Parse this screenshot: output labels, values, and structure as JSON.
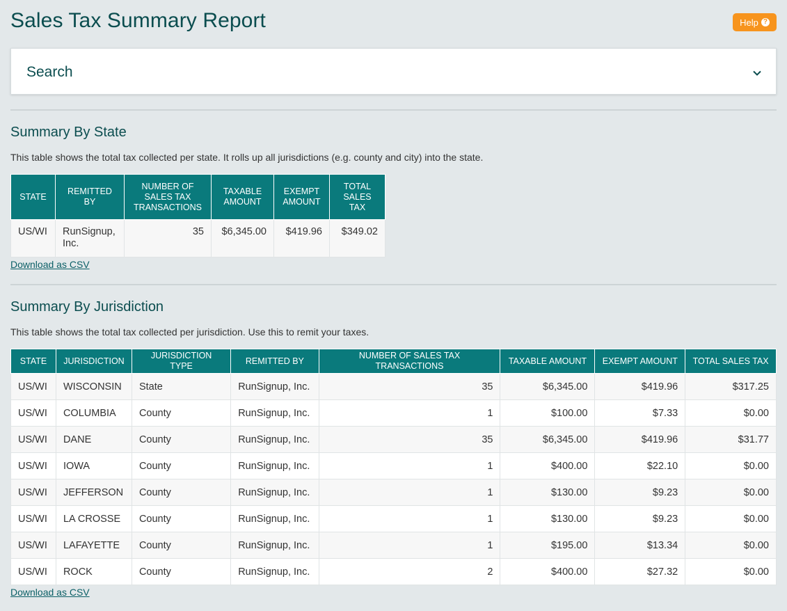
{
  "title": "Sales Tax Summary Report",
  "help": {
    "label": "Help",
    "icon": "question-circle-icon"
  },
  "search": {
    "label": "Search",
    "icon": "chevron-down-icon"
  },
  "state_section": {
    "heading": "Summary By State",
    "description": "This table shows the total tax collected per state. It rolls up all jurisdictions (e.g. county and city) into the state.",
    "columns": [
      "STATE",
      "REMITTED BY",
      "NUMBER OF SALES TAX TRANSACTIONS",
      "TAXABLE AMOUNT",
      "EXEMPT AMOUNT",
      "TOTAL SALES TAX"
    ],
    "rows": [
      [
        "US/WI",
        "RunSignup, Inc.",
        "35",
        "$6,345.00",
        "$419.96",
        "$349.02"
      ]
    ],
    "download_label": "Download as CSV"
  },
  "jurisdiction_section": {
    "heading": "Summary By Jurisdiction",
    "description": "This table shows the total tax collected per jurisdiction. Use this to remit your taxes.",
    "columns": [
      "STATE",
      "JURISDICTION",
      "JURISDICTION TYPE",
      "REMITTED BY",
      "NUMBER OF SALES TAX TRANSACTIONS",
      "TAXABLE AMOUNT",
      "EXEMPT AMOUNT",
      "TOTAL SALES TAX"
    ],
    "rows": [
      [
        "US/WI",
        "WISCONSIN",
        "State",
        "RunSignup, Inc.",
        "35",
        "$6,345.00",
        "$419.96",
        "$317.25"
      ],
      [
        "US/WI",
        "COLUMBIA",
        "County",
        "RunSignup, Inc.",
        "1",
        "$100.00",
        "$7.33",
        "$0.00"
      ],
      [
        "US/WI",
        "DANE",
        "County",
        "RunSignup, Inc.",
        "35",
        "$6,345.00",
        "$419.96",
        "$31.77"
      ],
      [
        "US/WI",
        "IOWA",
        "County",
        "RunSignup, Inc.",
        "1",
        "$400.00",
        "$22.10",
        "$0.00"
      ],
      [
        "US/WI",
        "JEFFERSON",
        "County",
        "RunSignup, Inc.",
        "1",
        "$130.00",
        "$9.23",
        "$0.00"
      ],
      [
        "US/WI",
        "LA CROSSE",
        "County",
        "RunSignup, Inc.",
        "1",
        "$130.00",
        "$9.23",
        "$0.00"
      ],
      [
        "US/WI",
        "LAFAYETTE",
        "County",
        "RunSignup, Inc.",
        "1",
        "$195.00",
        "$13.34",
        "$0.00"
      ],
      [
        "US/WI",
        "ROCK",
        "County",
        "RunSignup, Inc.",
        "2",
        "$400.00",
        "$27.32",
        "$0.00"
      ]
    ],
    "download_label": "Download as CSV"
  },
  "colors": {
    "brand": "#0b4d4f",
    "header_bg": "#0a7a7c",
    "accent": "#f7941d",
    "page_bg": "#e3e8ea"
  }
}
